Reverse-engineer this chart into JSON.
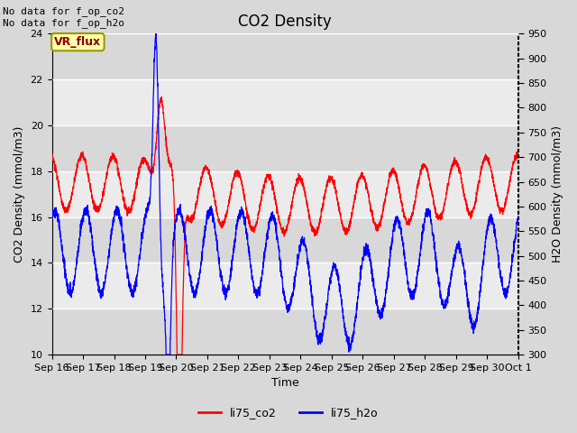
{
  "title": "CO2 Density",
  "xlabel": "Time",
  "ylabel_left": "CO2 Density (mmol/m3)",
  "ylabel_right": "H2O Density (mmol/m3)",
  "top_text_line1": "No data for f_op_co2",
  "top_text_line2": "No data for f_op_h2o",
  "vr_flux_label": "VR_flux",
  "ylim_left": [
    10,
    24
  ],
  "ylim_right": [
    300,
    950
  ],
  "yticks_left": [
    10,
    12,
    14,
    16,
    18,
    20,
    22,
    24
  ],
  "yticks_right": [
    300,
    350,
    400,
    450,
    500,
    550,
    600,
    650,
    700,
    750,
    800,
    850,
    900,
    950
  ],
  "xtick_labels": [
    "Sep 16",
    "Sep 17",
    "Sep 18",
    "Sep 19",
    "Sep 20",
    "Sep 21",
    "Sep 22",
    "Sep 23",
    "Sep 24",
    "Sep 25",
    "Sep 26",
    "Sep 27",
    "Sep 28",
    "Sep 29",
    "Sep 30",
    "Oct 1"
  ],
  "legend_co2": "li75_co2",
  "legend_h2o": "li75_h2o",
  "color_co2": "#FF0000",
  "color_h2o": "#0000FF",
  "bg_color": "#D8D8D8",
  "plot_bg_light": "#EBEBEB",
  "plot_bg_dark": "#D8D8D8",
  "grid_color": "#FFFFFF",
  "title_fontsize": 12,
  "label_fontsize": 9,
  "tick_fontsize": 8
}
